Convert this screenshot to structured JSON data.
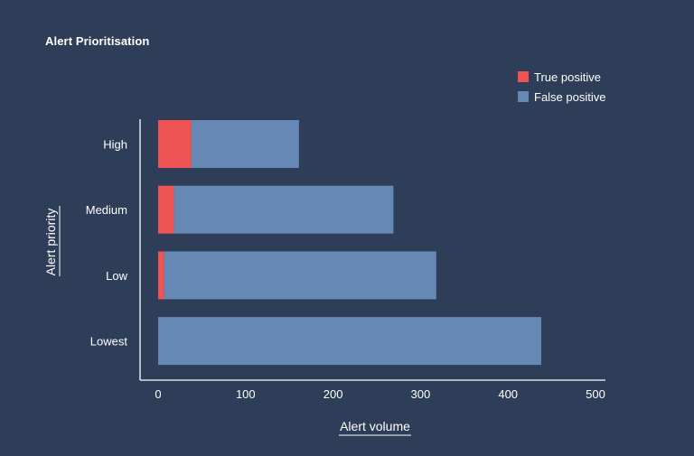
{
  "chart_data": {
    "type": "bar",
    "orientation": "horizontal",
    "stacked": true,
    "title": "Alert Prioritisation",
    "xlabel": "Alert volume",
    "ylabel": "Alert priority",
    "categories": [
      "High",
      "Medium",
      "Low",
      "Lowest"
    ],
    "series": [
      {
        "name": "True positive",
        "color": "#ef5455",
        "values": [
          38,
          18,
          7,
          0
        ]
      },
      {
        "name": "False positive",
        "color": "#6688b5",
        "values": [
          123,
          251,
          311,
          438
        ]
      }
    ],
    "xlim": [
      0,
      500
    ],
    "xticks": [
      0,
      100,
      200,
      300,
      400,
      500
    ],
    "grid": false,
    "legend_position": "top-right"
  },
  "colors": {
    "background": "#2e3e58",
    "axis": "#ffffff",
    "text": "#ffffff"
  }
}
